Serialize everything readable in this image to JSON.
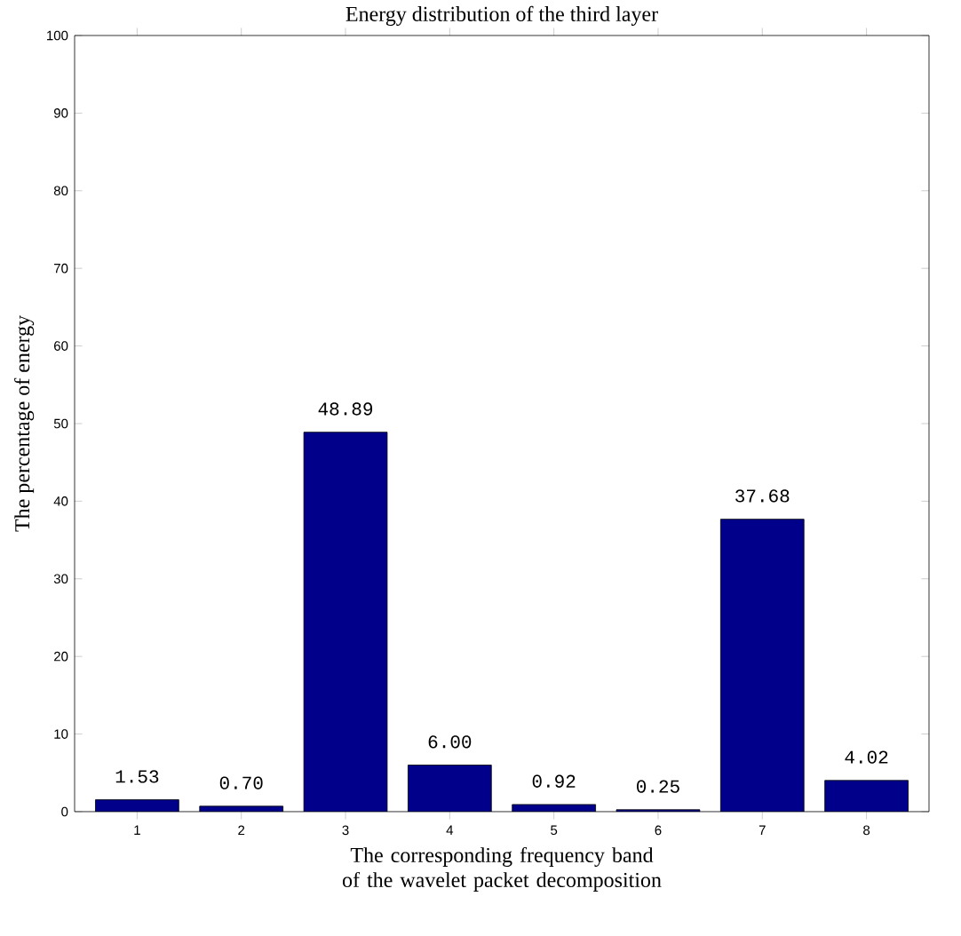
{
  "chart_data": {
    "type": "bar",
    "title": "Energy distribution of the third layer",
    "xlabel": "The corresponding frequency band of the wavelet packet decomposition",
    "ylabel": "The percentage of energy",
    "categories": [
      "1",
      "2",
      "3",
      "4",
      "5",
      "6",
      "7",
      "8"
    ],
    "values": [
      1.53,
      0.7,
      48.89,
      6.0,
      0.92,
      0.25,
      37.68,
      4.02
    ],
    "value_labels": [
      "1.53",
      "0.70",
      "48.89",
      "6.00",
      "0.92",
      "0.25",
      "37.68",
      "4.02"
    ],
    "color": "#00008b",
    "ylim": [
      0,
      100
    ],
    "yticks": [
      0,
      10,
      20,
      30,
      40,
      50,
      60,
      70,
      80,
      90,
      100
    ]
  }
}
